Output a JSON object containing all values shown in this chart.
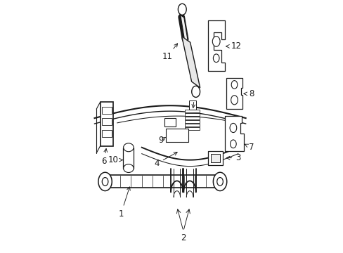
{
  "bg_color": "#ffffff",
  "lc": "#1a1a1a",
  "figsize": [
    4.89,
    3.6
  ],
  "dpi": 100
}
